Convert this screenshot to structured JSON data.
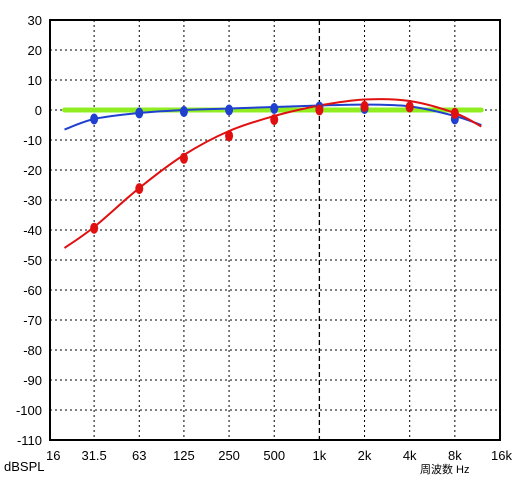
{
  "chart_data": {
    "type": "line",
    "x_unit": "Hz",
    "x_ticks": [
      {
        "f": 16,
        "label": "16"
      },
      {
        "f": 31.5,
        "label": "31.5"
      },
      {
        "f": 63,
        "label": "63"
      },
      {
        "f": 125,
        "label": "125"
      },
      {
        "f": 250,
        "label": "250"
      },
      {
        "f": 500,
        "label": "500"
      },
      {
        "f": 1000,
        "label": "1k"
      },
      {
        "f": 2000,
        "label": "2k"
      },
      {
        "f": 4000,
        "label": "4k"
      },
      {
        "f": 8000,
        "label": "8k"
      },
      {
        "f": 16000,
        "label": "16k"
      }
    ],
    "x_scale": "log",
    "ylim": [
      -110,
      30
    ],
    "y_ticks": [
      30,
      20,
      10,
      0,
      -10,
      -20,
      -30,
      -40,
      -50,
      -60,
      -70,
      -80,
      -90,
      -100,
      -110
    ],
    "ylabel": "dBSPL",
    "xlabel": "周波数 Hz",
    "grid": true,
    "reference_x_major": 1000,
    "series": [
      {
        "color": "#90ee20",
        "style": "line",
        "points": [
          [
            20,
            0
          ],
          [
            12000,
            0
          ]
        ]
      },
      {
        "color": "#2040d0",
        "style": "curve",
        "points": [
          [
            20,
            -6.5
          ],
          [
            31.5,
            -3
          ],
          [
            63,
            -1
          ],
          [
            125,
            0
          ],
          [
            250,
            0.5
          ],
          [
            500,
            1
          ],
          [
            1000,
            1.5
          ],
          [
            2000,
            1.8
          ],
          [
            4000,
            1.2
          ],
          [
            8000,
            -2
          ],
          [
            12000,
            -5
          ]
        ],
        "markers": [
          [
            31.5,
            -3
          ],
          [
            63,
            -1
          ],
          [
            125,
            -0.5
          ],
          [
            250,
            0
          ],
          [
            500,
            0.5
          ],
          [
            1000,
            1
          ],
          [
            2000,
            0.5
          ],
          [
            4000,
            1
          ],
          [
            8000,
            -3
          ]
        ]
      },
      {
        "color": "#e01010",
        "style": "curve",
        "points": [
          [
            20,
            -46
          ],
          [
            31.5,
            -39
          ],
          [
            63,
            -26
          ],
          [
            125,
            -15
          ],
          [
            250,
            -7
          ],
          [
            500,
            -2
          ],
          [
            1000,
            1.5
          ],
          [
            2000,
            3.5
          ],
          [
            4000,
            3
          ],
          [
            8000,
            -1
          ],
          [
            12000,
            -5.5
          ]
        ],
        "markers": [
          [
            31.5,
            -39.4
          ],
          [
            63,
            -26.2
          ],
          [
            125,
            -16.1
          ],
          [
            250,
            -8.6
          ],
          [
            500,
            -3.2
          ],
          [
            1000,
            0
          ],
          [
            2000,
            1.2
          ],
          [
            4000,
            1
          ],
          [
            8000,
            -1.1
          ]
        ]
      }
    ]
  }
}
